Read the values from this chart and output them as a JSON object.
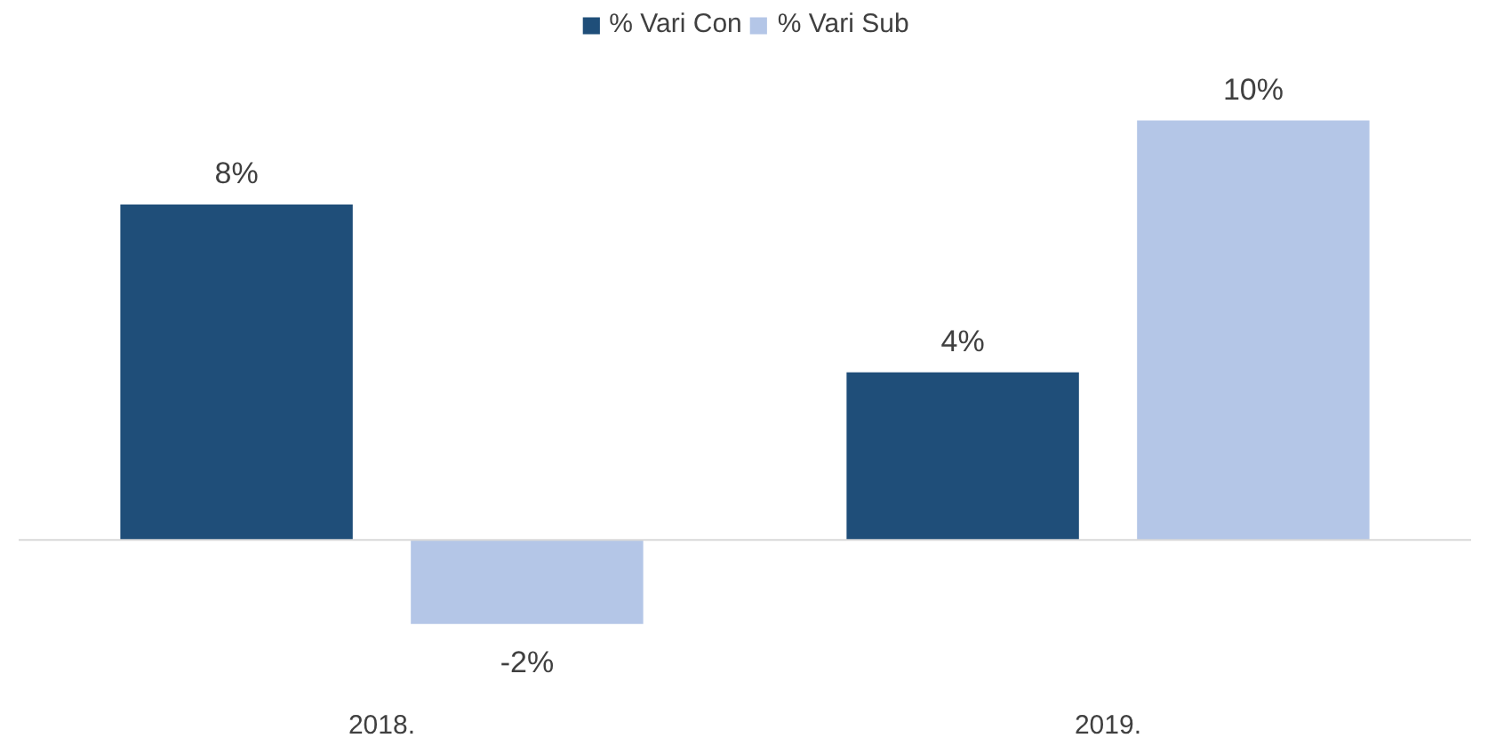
{
  "chart_data": {
    "type": "bar",
    "categories": [
      "2018.",
      "2019."
    ],
    "series": [
      {
        "name": "% Vari Con",
        "color": "#1f4e79",
        "values": [
          8,
          4
        ],
        "value_labels": [
          "8%",
          "4%"
        ]
      },
      {
        "name": "% Vari Sub",
        "color": "#b4c6e7",
        "values": [
          -2,
          10
        ],
        "value_labels": [
          "-2%",
          "10%"
        ]
      }
    ],
    "legend": "top",
    "grid": false
  }
}
